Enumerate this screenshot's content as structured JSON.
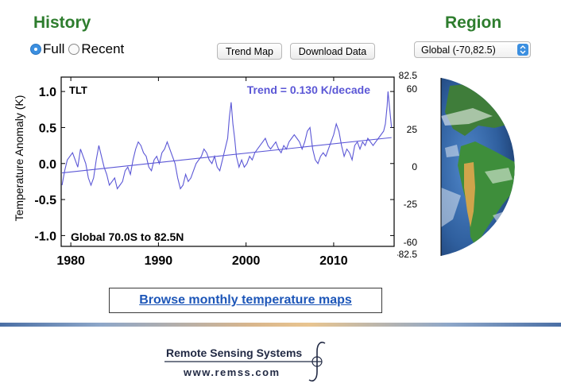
{
  "history": {
    "heading": "History",
    "options": [
      {
        "label": "Full",
        "selected": true
      },
      {
        "label": "Recent",
        "selected": false
      }
    ]
  },
  "buttons": {
    "trend_map": "Trend Map",
    "download_data": "Download Data"
  },
  "region": {
    "heading": "Region",
    "selected": "Global (-70,82.5)",
    "lat_labels": [
      "82.5",
      "60",
      "25",
      "0",
      "-25",
      "-60",
      "-82.5"
    ]
  },
  "browse_link": "Browse monthly temperature maps",
  "logo": {
    "name": "Remote Sensing Systems",
    "url": "www.remss.com"
  },
  "colors": {
    "heading": "#2e7d2e",
    "series": "#5b57d6",
    "link": "#1d56b8"
  },
  "chart_data": {
    "type": "line",
    "ylabel": "Temperature Anomaly (K)",
    "xlabel": "",
    "xlim": [
      1978.9,
      2016.9
    ],
    "ylim": [
      -1.15,
      1.2
    ],
    "xticks": [
      1980,
      1990,
      2000,
      2010
    ],
    "yticks": [
      1.0,
      0.5,
      0.0,
      -0.5,
      -1.0
    ],
    "ytick_labels": [
      "1.0",
      "0.5",
      "0.0",
      "-0.5",
      "-1.0"
    ],
    "corner_label": "TLT",
    "trend_label": "Trend =  0.130 K/decade",
    "region_label": "Global  70.0S to  82.5N",
    "series": [
      {
        "name": "anomaly",
        "x": [
          1979.0,
          1979.3,
          1979.6,
          1979.9,
          1980.2,
          1980.5,
          1980.8,
          1981.1,
          1981.4,
          1981.7,
          1982.0,
          1982.3,
          1982.6,
          1982.9,
          1983.2,
          1983.5,
          1983.8,
          1984.1,
          1984.4,
          1984.7,
          1985.0,
          1985.3,
          1985.6,
          1985.9,
          1986.2,
          1986.5,
          1986.8,
          1987.1,
          1987.4,
          1987.7,
          1988.0,
          1988.3,
          1988.6,
          1988.9,
          1989.2,
          1989.5,
          1989.8,
          1990.1,
          1990.4,
          1990.7,
          1991.0,
          1991.3,
          1991.6,
          1991.9,
          1992.2,
          1992.5,
          1992.8,
          1993.1,
          1993.4,
          1993.7,
          1994.0,
          1994.3,
          1994.6,
          1994.9,
          1995.2,
          1995.5,
          1995.8,
          1996.1,
          1996.4,
          1996.7,
          1997.0,
          1997.3,
          1997.6,
          1997.9,
          1998.1,
          1998.3,
          1998.5,
          1998.7,
          1998.9,
          1999.2,
          1999.5,
          1999.8,
          2000.1,
          2000.4,
          2000.7,
          2001.0,
          2001.3,
          2001.6,
          2001.9,
          2002.2,
          2002.5,
          2002.8,
          2003.1,
          2003.4,
          2003.7,
          2004.0,
          2004.3,
          2004.6,
          2004.9,
          2005.2,
          2005.5,
          2005.8,
          2006.1,
          2006.4,
          2006.7,
          2007.0,
          2007.3,
          2007.6,
          2007.9,
          2008.2,
          2008.5,
          2008.8,
          2009.1,
          2009.4,
          2009.7,
          2010.0,
          2010.3,
          2010.6,
          2010.9,
          2011.2,
          2011.5,
          2011.8,
          2012.1,
          2012.4,
          2012.7,
          2013.0,
          2013.3,
          2013.6,
          2013.9,
          2014.2,
          2014.5,
          2014.8,
          2015.1,
          2015.4,
          2015.7,
          2015.9,
          2016.1,
          2016.2,
          2016.4,
          2016.6
        ],
        "y": [
          -0.3,
          -0.1,
          0.05,
          0.1,
          0.15,
          0.05,
          -0.05,
          0.2,
          0.1,
          0.0,
          -0.2,
          -0.3,
          -0.2,
          0.05,
          0.25,
          0.1,
          -0.05,
          -0.15,
          -0.3,
          -0.25,
          -0.2,
          -0.35,
          -0.3,
          -0.25,
          -0.1,
          -0.05,
          -0.15,
          0.05,
          0.2,
          0.3,
          0.25,
          0.15,
          0.1,
          -0.05,
          -0.1,
          0.05,
          0.1,
          0.0,
          0.15,
          0.2,
          0.3,
          0.2,
          0.1,
          0.0,
          -0.2,
          -0.35,
          -0.3,
          -0.15,
          -0.25,
          -0.2,
          -0.1,
          0.0,
          0.05,
          0.1,
          0.2,
          0.15,
          0.05,
          0.0,
          0.1,
          -0.05,
          -0.1,
          0.05,
          0.2,
          0.35,
          0.65,
          0.85,
          0.55,
          0.35,
          0.1,
          -0.05,
          0.05,
          -0.05,
          0.0,
          0.1,
          0.05,
          0.15,
          0.2,
          0.25,
          0.3,
          0.35,
          0.25,
          0.2,
          0.25,
          0.3,
          0.2,
          0.15,
          0.25,
          0.2,
          0.3,
          0.35,
          0.4,
          0.35,
          0.3,
          0.2,
          0.3,
          0.45,
          0.5,
          0.2,
          0.05,
          0.0,
          0.1,
          0.15,
          0.1,
          0.2,
          0.3,
          0.4,
          0.55,
          0.45,
          0.25,
          0.1,
          0.2,
          0.15,
          0.05,
          0.25,
          0.3,
          0.2,
          0.3,
          0.25,
          0.35,
          0.3,
          0.25,
          0.3,
          0.35,
          0.4,
          0.45,
          0.55,
          0.8,
          1.0,
          0.75,
          0.5
        ]
      },
      {
        "name": "trend",
        "x": [
          1979.0,
          2016.6
        ],
        "y": [
          -0.13,
          0.36
        ]
      }
    ]
  }
}
